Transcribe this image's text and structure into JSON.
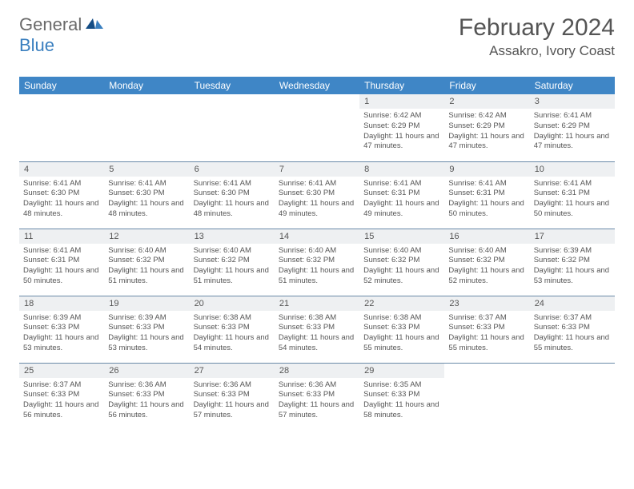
{
  "logo": {
    "text_general": "General",
    "text_blue": "Blue"
  },
  "title": "February 2024",
  "location": "Assakro, Ivory Coast",
  "colors": {
    "header_bg": "#3f86c6",
    "header_text": "#ffffff",
    "daynum_bg": "#eef0f2",
    "body_text": "#555555",
    "rule": "#6a8aa8",
    "logo_blue": "#3a7fbf"
  },
  "weekdays": [
    "Sunday",
    "Monday",
    "Tuesday",
    "Wednesday",
    "Thursday",
    "Friday",
    "Saturday"
  ],
  "weeks": [
    [
      null,
      null,
      null,
      null,
      {
        "n": "1",
        "sr": "6:42 AM",
        "ss": "6:29 PM",
        "dl": "11 hours and 47 minutes."
      },
      {
        "n": "2",
        "sr": "6:42 AM",
        "ss": "6:29 PM",
        "dl": "11 hours and 47 minutes."
      },
      {
        "n": "3",
        "sr": "6:41 AM",
        "ss": "6:29 PM",
        "dl": "11 hours and 47 minutes."
      }
    ],
    [
      {
        "n": "4",
        "sr": "6:41 AM",
        "ss": "6:30 PM",
        "dl": "11 hours and 48 minutes."
      },
      {
        "n": "5",
        "sr": "6:41 AM",
        "ss": "6:30 PM",
        "dl": "11 hours and 48 minutes."
      },
      {
        "n": "6",
        "sr": "6:41 AM",
        "ss": "6:30 PM",
        "dl": "11 hours and 48 minutes."
      },
      {
        "n": "7",
        "sr": "6:41 AM",
        "ss": "6:30 PM",
        "dl": "11 hours and 49 minutes."
      },
      {
        "n": "8",
        "sr": "6:41 AM",
        "ss": "6:31 PM",
        "dl": "11 hours and 49 minutes."
      },
      {
        "n": "9",
        "sr": "6:41 AM",
        "ss": "6:31 PM",
        "dl": "11 hours and 50 minutes."
      },
      {
        "n": "10",
        "sr": "6:41 AM",
        "ss": "6:31 PM",
        "dl": "11 hours and 50 minutes."
      }
    ],
    [
      {
        "n": "11",
        "sr": "6:41 AM",
        "ss": "6:31 PM",
        "dl": "11 hours and 50 minutes."
      },
      {
        "n": "12",
        "sr": "6:40 AM",
        "ss": "6:32 PM",
        "dl": "11 hours and 51 minutes."
      },
      {
        "n": "13",
        "sr": "6:40 AM",
        "ss": "6:32 PM",
        "dl": "11 hours and 51 minutes."
      },
      {
        "n": "14",
        "sr": "6:40 AM",
        "ss": "6:32 PM",
        "dl": "11 hours and 51 minutes."
      },
      {
        "n": "15",
        "sr": "6:40 AM",
        "ss": "6:32 PM",
        "dl": "11 hours and 52 minutes."
      },
      {
        "n": "16",
        "sr": "6:40 AM",
        "ss": "6:32 PM",
        "dl": "11 hours and 52 minutes."
      },
      {
        "n": "17",
        "sr": "6:39 AM",
        "ss": "6:32 PM",
        "dl": "11 hours and 53 minutes."
      }
    ],
    [
      {
        "n": "18",
        "sr": "6:39 AM",
        "ss": "6:33 PM",
        "dl": "11 hours and 53 minutes."
      },
      {
        "n": "19",
        "sr": "6:39 AM",
        "ss": "6:33 PM",
        "dl": "11 hours and 53 minutes."
      },
      {
        "n": "20",
        "sr": "6:38 AM",
        "ss": "6:33 PM",
        "dl": "11 hours and 54 minutes."
      },
      {
        "n": "21",
        "sr": "6:38 AM",
        "ss": "6:33 PM",
        "dl": "11 hours and 54 minutes."
      },
      {
        "n": "22",
        "sr": "6:38 AM",
        "ss": "6:33 PM",
        "dl": "11 hours and 55 minutes."
      },
      {
        "n": "23",
        "sr": "6:37 AM",
        "ss": "6:33 PM",
        "dl": "11 hours and 55 minutes."
      },
      {
        "n": "24",
        "sr": "6:37 AM",
        "ss": "6:33 PM",
        "dl": "11 hours and 55 minutes."
      }
    ],
    [
      {
        "n": "25",
        "sr": "6:37 AM",
        "ss": "6:33 PM",
        "dl": "11 hours and 56 minutes."
      },
      {
        "n": "26",
        "sr": "6:36 AM",
        "ss": "6:33 PM",
        "dl": "11 hours and 56 minutes."
      },
      {
        "n": "27",
        "sr": "6:36 AM",
        "ss": "6:33 PM",
        "dl": "11 hours and 57 minutes."
      },
      {
        "n": "28",
        "sr": "6:36 AM",
        "ss": "6:33 PM",
        "dl": "11 hours and 57 minutes."
      },
      {
        "n": "29",
        "sr": "6:35 AM",
        "ss": "6:33 PM",
        "dl": "11 hours and 58 minutes."
      },
      null,
      null
    ]
  ],
  "labels": {
    "sunrise": "Sunrise: ",
    "sunset": "Sunset: ",
    "daylight": "Daylight: "
  }
}
